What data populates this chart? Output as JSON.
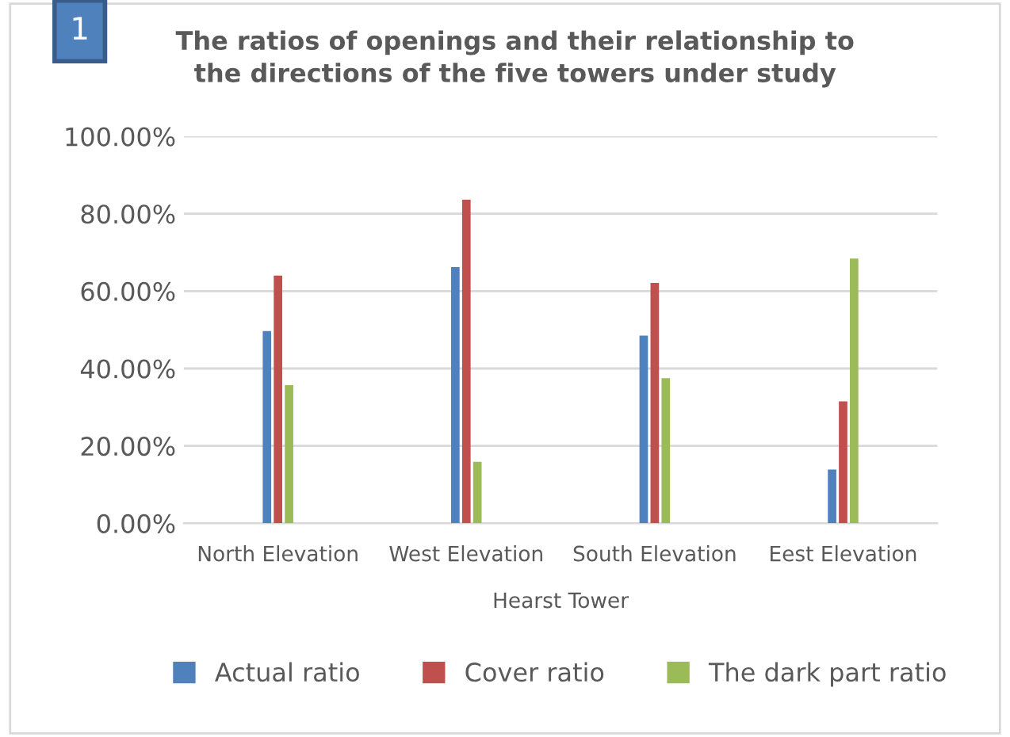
{
  "chart_data": {
    "type": "bar",
    "title": "The ratios of openings and their relationship to\nthe directions of the five towers under study",
    "xlabel": "Hearst Tower",
    "annotations": [
      "1"
    ],
    "categories": [
      "North Elevation",
      "West Elevation",
      "South Elevation",
      "Eest Elevation"
    ],
    "series": [
      {
        "name": "Actual ratio",
        "color": "#4f81bd",
        "values": [
          49.7,
          66.2,
          48.5,
          13.9
        ]
      },
      {
        "name": "Cover ratio",
        "color": "#c0504d",
        "values": [
          64,
          83.6,
          62.1,
          31.5
        ]
      },
      {
        "name": "The dark part ratio",
        "color": "#9bbb59",
        "values": [
          35.7,
          15.9,
          37.5,
          68.4
        ]
      }
    ],
    "ylim": [
      0,
      100
    ],
    "yticks": [
      {
        "value": 0,
        "label": "0.00%"
      },
      {
        "value": 20,
        "label": "20.00%"
      },
      {
        "value": 40,
        "label": "40.00%"
      },
      {
        "value": 60,
        "label": "60.00%"
      },
      {
        "value": 80,
        "label": "80.00%"
      },
      {
        "value": 100,
        "label": "100.00%"
      }
    ],
    "grid": "y",
    "legend": "bottom"
  }
}
